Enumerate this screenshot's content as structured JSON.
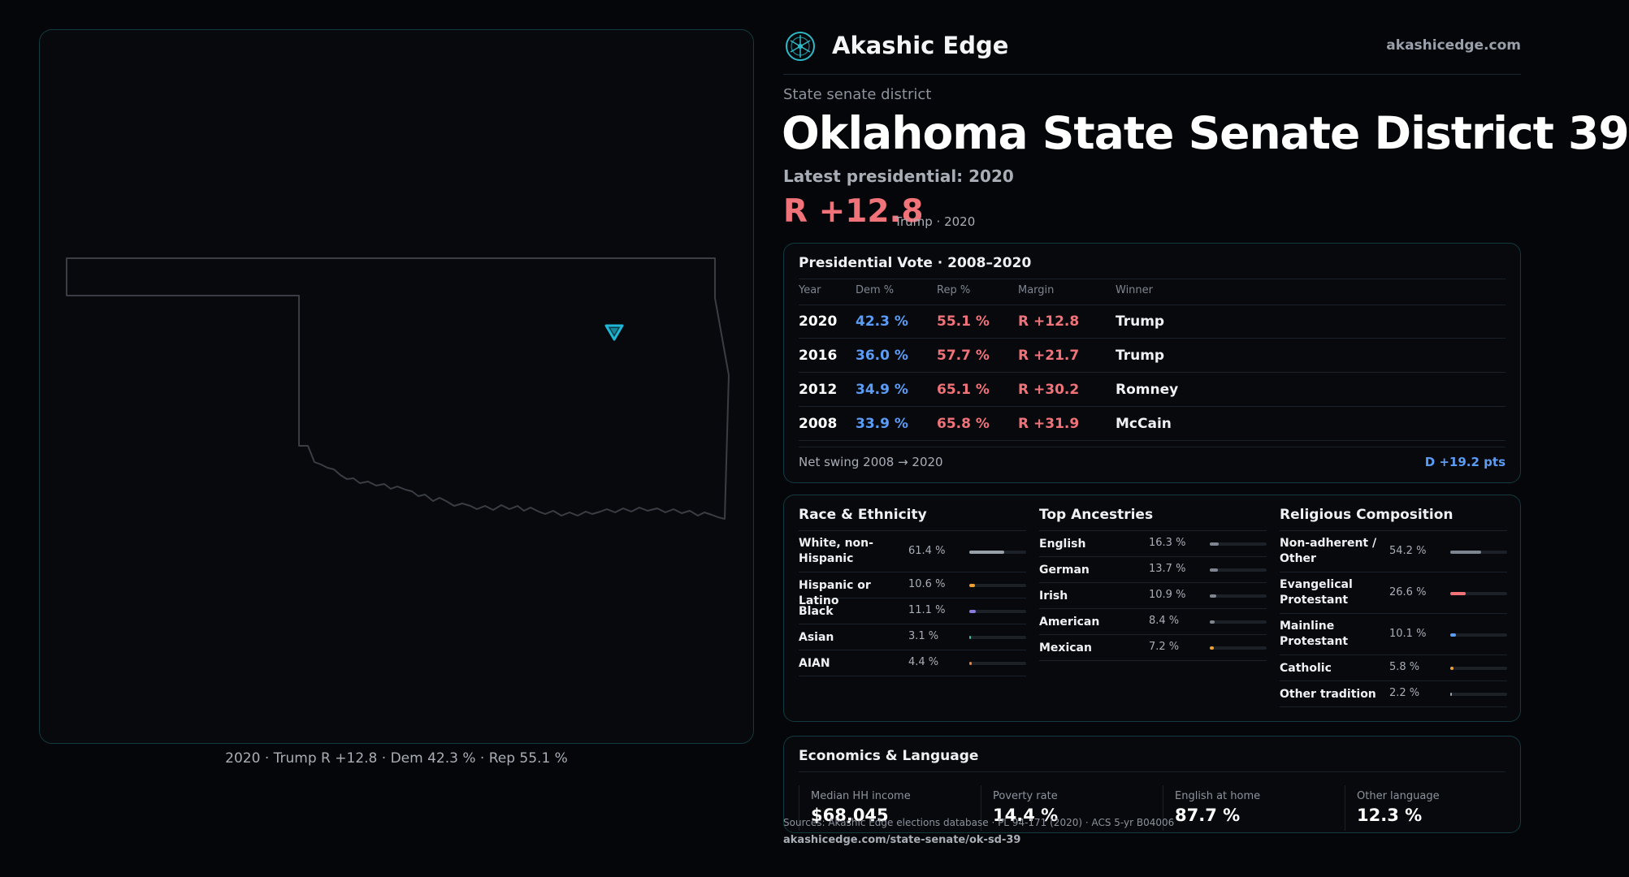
{
  "brand": {
    "name": "Akashic Edge",
    "url": "akashicedge.com",
    "logo_icon": "akashic-logo-icon"
  },
  "header": {
    "kicker": "State senate district",
    "title": "Oklahoma State Senate District 39",
    "latest": "Latest presidential: 2020",
    "margin": "R +12.8",
    "margin_sub": "Trump · 2020"
  },
  "map": {
    "caption": "2020 · Trump R +12.8 · Dem 42.3 % · Rep 55.1 %",
    "marker_icon": "district-marker-icon",
    "accent": "#1fb7d6"
  },
  "presidential": {
    "title": "Presidential Vote · 2008–2020",
    "headers": {
      "year": "Year",
      "dem": "Dem %",
      "rep": "Rep %",
      "margin": "Margin",
      "winner": "Winner"
    },
    "rows": [
      {
        "year": "2020",
        "dem": "42.3 %",
        "rep": "55.1 %",
        "margin": "R +12.8",
        "winner": "Trump"
      },
      {
        "year": "2016",
        "dem": "36.0 %",
        "rep": "57.7 %",
        "margin": "R +21.7",
        "winner": "Trump"
      },
      {
        "year": "2012",
        "dem": "34.9 %",
        "rep": "65.1 %",
        "margin": "R +30.2",
        "winner": "Romney"
      },
      {
        "year": "2008",
        "dem": "33.9 %",
        "rep": "65.8 %",
        "margin": "R +31.9",
        "winner": "McCain"
      }
    ],
    "swing_label": "Net swing 2008 → 2020",
    "swing_value": "D +19.2 pts"
  },
  "race": {
    "title": "Race & Ethnicity",
    "items": [
      {
        "label": "White, non-Hispanic",
        "value": "61.4 %",
        "share": 61.4,
        "color": "#9aa0aa"
      },
      {
        "label": "Hispanic or Latino",
        "value": "10.6 %",
        "share": 10.6,
        "color": "#f0a030"
      },
      {
        "label": "Black",
        "value": "11.1 %",
        "share": 11.1,
        "color": "#8a7ae0"
      },
      {
        "label": "Asian",
        "value": "3.1 %",
        "share": 3.1,
        "color": "#3cc0a0"
      },
      {
        "label": "AIAN",
        "value": "4.4 %",
        "share": 4.4,
        "color": "#e8803a"
      }
    ]
  },
  "ancestry": {
    "title": "Top Ancestries",
    "items": [
      {
        "label": "English",
        "value": "16.3 %",
        "share": 16.3,
        "color": "#7f8590"
      },
      {
        "label": "German",
        "value": "13.7 %",
        "share": 13.7,
        "color": "#7f8590"
      },
      {
        "label": "Irish",
        "value": "10.9 %",
        "share": 10.9,
        "color": "#7f8590"
      },
      {
        "label": "American",
        "value": "8.4 %",
        "share": 8.4,
        "color": "#7f8590"
      },
      {
        "label": "Mexican",
        "value": "7.2 %",
        "share": 7.2,
        "color": "#f0a030"
      }
    ]
  },
  "religion": {
    "title": "Religious Composition",
    "items": [
      {
        "label": "Non-adherent / Other",
        "value": "54.2 %",
        "share": 54.2,
        "color": "#7f8590"
      },
      {
        "label": "Evangelical Protestant",
        "value": "26.6 %",
        "share": 26.6,
        "color": "#f0737a"
      },
      {
        "label": "Mainline Protestant",
        "value": "10.1 %",
        "share": 10.1,
        "color": "#5b9cf5"
      },
      {
        "label": "Catholic",
        "value": "5.8 %",
        "share": 5.8,
        "color": "#f0a030"
      },
      {
        "label": "Other tradition",
        "value": "2.2 %",
        "share": 2.2,
        "color": "#9aa0aa"
      }
    ]
  },
  "economics": {
    "title": "Economics & Language",
    "items": [
      {
        "label": "Median HH income",
        "value": "$68,045"
      },
      {
        "label": "Poverty rate",
        "value": "14.4 %"
      },
      {
        "label": "English at home",
        "value": "87.7 %"
      },
      {
        "label": "Other language",
        "value": "12.3 %"
      }
    ]
  },
  "footer": {
    "sources": "Sources: Akashic Edge elections database · PL 94-171 (2020) · ACS 5-yr B04006",
    "permalink": "akashicedge.com/state-senate/ok-sd-39"
  }
}
